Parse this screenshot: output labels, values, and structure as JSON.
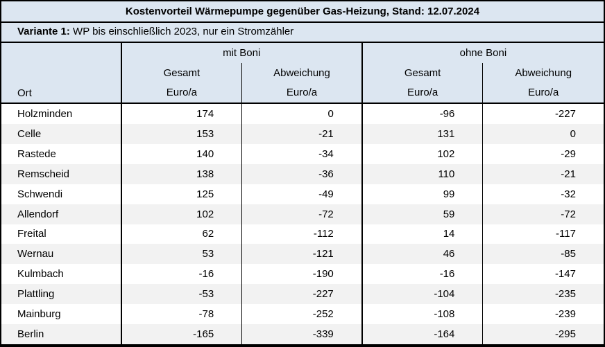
{
  "title": "Kostenvorteil Wärmepumpe gegenüber Gas-Heizung, Stand: 12.07.2024",
  "variant": {
    "label": "Variante 1:",
    "description": " WP bis einschließlich 2023, nur ein Stromzähler"
  },
  "header": {
    "ort_label": "Ort",
    "groups": [
      {
        "label": "mit Boni"
      },
      {
        "label": "ohne Boni"
      }
    ],
    "sub_columns": [
      "Gesamt",
      "Abweichung",
      "Gesamt",
      "Abweichung"
    ],
    "unit_label": "Euro/a"
  },
  "colors": {
    "header_bg": "#dce6f1",
    "row_bg": "#ffffff",
    "row_alt_bg": "#f2f2f2",
    "border": "#000000",
    "text": "#000000"
  },
  "chart_data": {
    "type": "table",
    "title": "Kostenvorteil Wärmepumpe gegenüber Gas-Heizung, Stand: 12.07.2024",
    "subtitle": "Variante 1: WP bis einschließlich 2023, nur ein Stromzähler",
    "columns": [
      "Ort",
      "mit Boni — Gesamt (Euro/a)",
      "mit Boni — Abweichung (Euro/a)",
      "ohne Boni — Gesamt (Euro/a)",
      "ohne Boni — Abweichung (Euro/a)"
    ],
    "rows": [
      [
        "Holzminden",
        174,
        0,
        -96,
        -227
      ],
      [
        "Celle",
        153,
        -21,
        131,
        0
      ],
      [
        "Rastede",
        140,
        -34,
        102,
        -29
      ],
      [
        "Remscheid",
        138,
        -36,
        110,
        -21
      ],
      [
        "Schwendi",
        125,
        -49,
        99,
        -32
      ],
      [
        "Allendorf",
        102,
        -72,
        59,
        -72
      ],
      [
        "Freital",
        62,
        -112,
        14,
        -117
      ],
      [
        "Wernau",
        53,
        -121,
        46,
        -85
      ],
      [
        "Kulmbach",
        -16,
        -190,
        -16,
        -147
      ],
      [
        "Plattling",
        -53,
        -227,
        -104,
        -235
      ],
      [
        "Mainburg",
        -78,
        -252,
        -108,
        -239
      ],
      [
        "Berlin",
        -165,
        -339,
        -164,
        -295
      ]
    ]
  }
}
